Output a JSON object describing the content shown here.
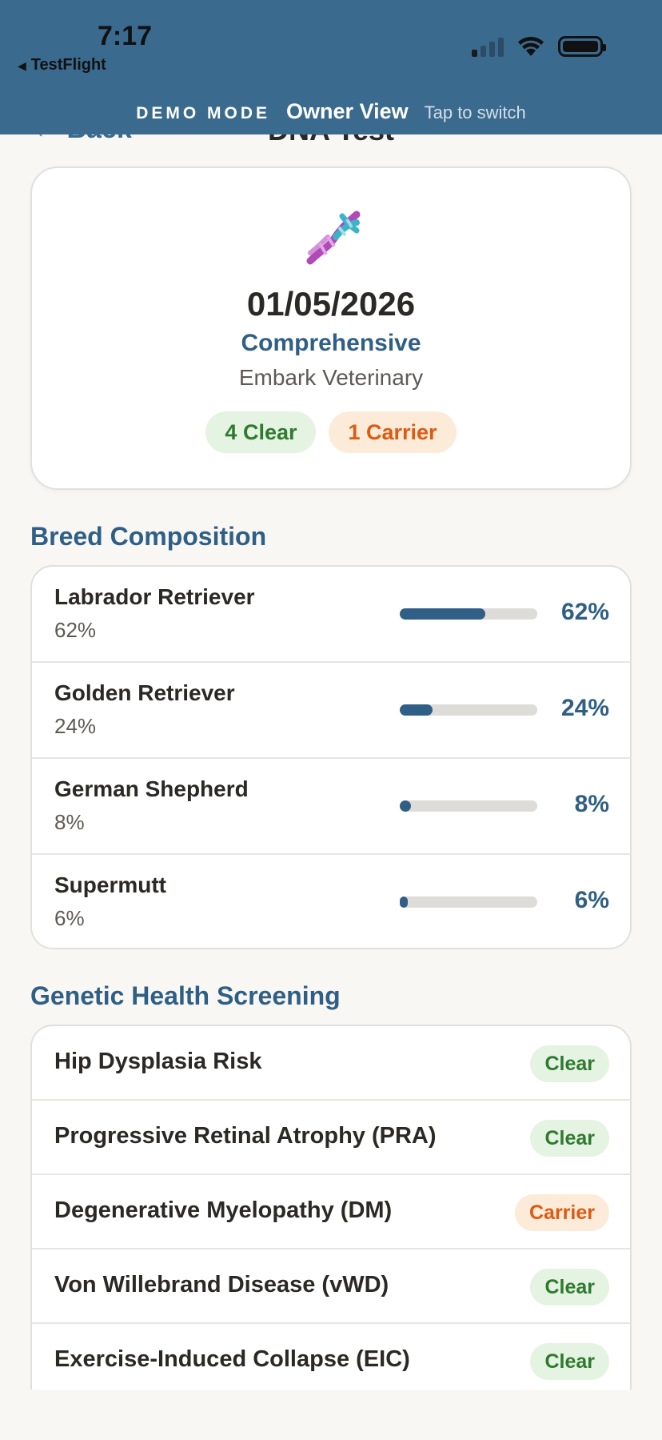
{
  "status_bar": {
    "time": "7:17",
    "back_app": "TestFlight"
  },
  "demo_banner": {
    "mode_label": "DEMO MODE",
    "view_label": "Owner View",
    "hint": "Tap to switch"
  },
  "nav": {
    "back_label": "← Back",
    "title": "DNA Test"
  },
  "summary": {
    "icon": "dna-icon",
    "date": "01/05/2026",
    "test_type": "Comprehensive",
    "provider": "Embark Veterinary",
    "clear_count_label": "4 Clear",
    "carrier_count_label": "1 Carrier"
  },
  "breed_section": {
    "title": "Breed Composition",
    "items": [
      {
        "name": "Labrador Retriever",
        "sub": "62%",
        "pct_label": "62%",
        "pct": 62
      },
      {
        "name": "Golden Retriever",
        "sub": "24%",
        "pct_label": "24%",
        "pct": 24
      },
      {
        "name": "German Shepherd",
        "sub": "8%",
        "pct_label": "8%",
        "pct": 8
      },
      {
        "name": "Supermutt",
        "sub": "6%",
        "pct_label": "6%",
        "pct": 6
      }
    ]
  },
  "health_section": {
    "title": "Genetic Health Screening",
    "items": [
      {
        "name": "Hip Dysplasia Risk",
        "status": "Clear"
      },
      {
        "name": "Progressive Retinal Atrophy (PRA)",
        "status": "Clear"
      },
      {
        "name": "Degenerative Myelopathy (DM)",
        "status": "Carrier"
      },
      {
        "name": "Von Willebrand Disease (vWD)",
        "status": "Clear"
      },
      {
        "name": "Exercise-Induced Collapse (EIC)",
        "status": "Clear"
      }
    ]
  },
  "colors": {
    "banner": "#3b6a8f",
    "accent": "#2f5f86",
    "clear_text": "#2f7a2f",
    "clear_bg": "#e4f3e2",
    "carrier_text": "#dd5a12",
    "carrier_bg": "#fdebd9"
  }
}
